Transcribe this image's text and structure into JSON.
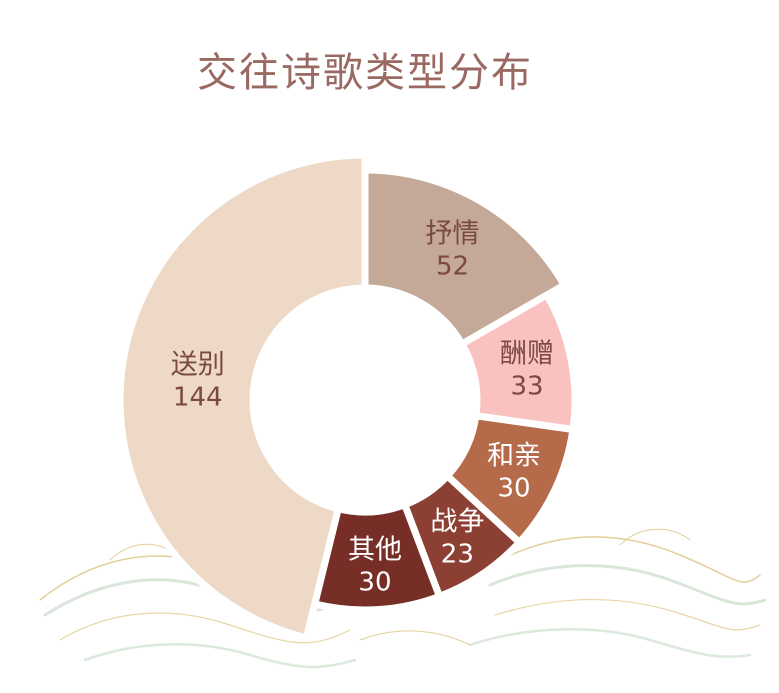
{
  "chart_data": {
    "type": "pie",
    "variant": "donut",
    "title": "交往诗歌类型分布",
    "categories": [
      "送别",
      "抒情",
      "酬赠",
      "和亲",
      "战争",
      "其他"
    ],
    "values": [
      144,
      52,
      33,
      30,
      23,
      30
    ],
    "colors": [
      "#edd9c6",
      "#c4a898",
      "#f9c1c0",
      "#b56a4a",
      "#8c3f33",
      "#772e26"
    ],
    "label_colors": [
      "#7a4a40",
      "#7a4a40",
      "#7a4a40",
      "#ffffff",
      "#ffffff",
      "#ffffff"
    ],
    "legend": "none"
  }
}
